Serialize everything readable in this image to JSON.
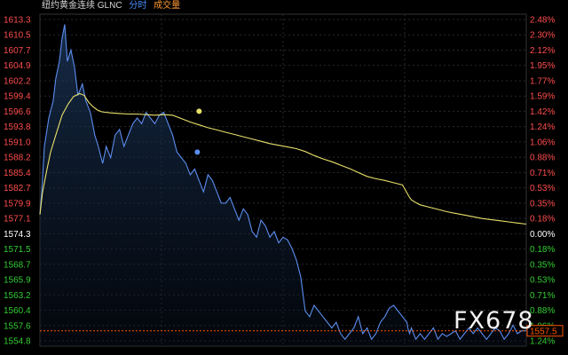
{
  "header": {
    "title": "纽约黄金连续 GLNC",
    "tab_timeshare": "分时",
    "tab_volume": "成交量"
  },
  "watermark": "FX678",
  "colors": {
    "price_line": "#5b8def",
    "avg_line": "#e8e06a",
    "grid": "#2a2a2a",
    "left_axis_text": "#ff4d4d",
    "pct_up": "#ff4d4d",
    "pct_flat": "#ffffff",
    "pct_down": "#33cc33",
    "last_price_tag": "#ff5500"
  },
  "chart_data": {
    "type": "line",
    "title": "",
    "xlabel": "",
    "ylabel": "",
    "ylim": [
      1554.8,
      1613.3
    ],
    "reference_price": 1574.3,
    "price_ticks": [
      "1613.3",
      "1610.5",
      "1607.7",
      "1604.9",
      "1602.2",
      "1599.4",
      "1596.6",
      "1593.8",
      "1591.0",
      "1588.2",
      "1585.4",
      "1582.7",
      "1579.9",
      "1577.1",
      "1574.3",
      "1571.5",
      "1568.7",
      "1565.9",
      "1563.2",
      "1560.4",
      "1557.6",
      "1554.8"
    ],
    "pct_ticks": [
      "2.48%",
      "2.30%",
      "2.12%",
      "1.95%",
      "1.77%",
      "1.59%",
      "1.42%",
      "1.24%",
      "1.06%",
      "0.88%",
      "0.71%",
      "0.53%",
      "0.35%",
      "0.18%",
      "0.00%",
      "0.18%",
      "0.35%",
      "0.53%",
      "0.71%",
      "0.88%",
      "1.06%",
      "1.24%"
    ],
    "last_price_label": "1557.5",
    "last_price": 1557.5,
    "series": [
      {
        "name": "",
        "x": [
          0,
          2,
          5,
          10,
          15,
          18,
          22,
          25,
          28,
          31,
          35,
          39,
          43,
          48,
          52,
          57,
          62,
          66,
          71,
          75,
          80,
          85,
          90,
          95,
          100,
          105,
          110,
          115,
          120,
          125,
          130,
          135,
          140,
          145,
          150,
          155,
          160,
          165,
          170,
          175,
          180,
          185,
          190,
          195,
          200,
          205,
          210,
          215,
          220,
          225,
          230,
          235,
          240,
          245,
          250,
          255,
          260,
          265,
          270,
          275,
          280,
          285,
          290,
          295,
          300,
          305,
          310,
          315,
          320,
          325,
          330,
          335,
          340,
          345,
          350,
          355,
          360,
          365,
          370,
          375,
          380,
          385,
          390,
          395,
          400,
          405,
          410,
          415,
          416,
          418,
          420,
          425,
          430,
          435,
          440,
          445,
          450,
          455,
          460,
          465,
          470,
          475,
          480,
          485,
          490,
          495,
          500,
          505,
          510,
          515,
          520,
          525,
          530,
          535,
          540,
          545,
          550
        ],
        "values": [
          1578.0,
          1582.0,
          1590.0,
          1595.0,
          1598.0,
          1602.0,
          1605.0,
          1609.0,
          1611.5,
          1605.0,
          1607.0,
          1604.0,
          1599.0,
          1601.0,
          1598.0,
          1596.0,
          1592.0,
          1590.0,
          1587.0,
          1590.0,
          1588.0,
          1592.0,
          1593.0,
          1590.0,
          1592.0,
          1594.0,
          1595.0,
          1594.0,
          1596.0,
          1595.0,
          1594.0,
          1595.5,
          1596.0,
          1594.0,
          1592.0,
          1589.0,
          1588.0,
          1587.0,
          1585.0,
          1586.0,
          1584.0,
          1582.0,
          1585.0,
          1584.0,
          1582.0,
          1580.0,
          1580.0,
          1581.0,
          1579.0,
          1577.0,
          1579.0,
          1578.0,
          1575.0,
          1574.0,
          1577.0,
          1576.0,
          1574.0,
          1575.0,
          1573.0,
          1574.0,
          1573.5,
          1572.0,
          1570.0,
          1567.0,
          1561.0,
          1560.0,
          1562.0,
          1561.0,
          1560.0,
          1559.0,
          1558.0,
          1559.0,
          1557.0,
          1556.0,
          1557.0,
          1558.0,
          1560.0,
          1557.0,
          1558.0,
          1556.0,
          1557.0,
          1559.0,
          1560.0,
          1561.5,
          1562.0,
          1561.0,
          1560.0,
          1559.0,
          1558.0,
          1557.0,
          1558.0,
          1556.0,
          1557.0,
          1556.0,
          1557.0,
          1558.0,
          1556.0,
          1557.0,
          1556.5,
          1557.0,
          1557.5,
          1556.0,
          1557.0,
          1558.0,
          1557.0,
          1558.0,
          1557.0,
          1556.0,
          1557.0,
          1558.0,
          1557.5,
          1556.0,
          1557.0,
          1558.5,
          1557.0,
          1557.5,
          1557.5
        ]
      },
      {
        "name": "",
        "x": [
          0,
          3,
          8,
          12,
          18,
          25,
          32,
          38,
          45,
          50,
          55,
          60,
          65,
          70,
          80,
          90,
          100,
          110,
          120,
          130,
          140,
          150,
          160,
          170,
          180,
          190,
          200,
          210,
          220,
          230,
          240,
          250,
          260,
          270,
          280,
          290,
          300,
          310,
          320,
          330,
          340,
          350,
          360,
          370,
          380,
          390,
          400,
          410,
          418,
          420,
          425,
          430,
          440,
          450,
          460,
          470,
          480,
          490,
          500,
          510,
          520,
          530,
          540,
          550
        ],
        "values": [
          1578.0,
          1582.0,
          1586.0,
          1589.0,
          1592.0,
          1595.5,
          1597.5,
          1598.8,
          1599.3,
          1599.0,
          1597.8,
          1597.0,
          1596.4,
          1596.1,
          1595.9,
          1595.8,
          1595.7,
          1595.7,
          1595.6,
          1595.5,
          1595.6,
          1595.5,
          1594.9,
          1594.3,
          1593.8,
          1593.3,
          1592.9,
          1592.5,
          1592.1,
          1591.7,
          1591.3,
          1590.9,
          1590.5,
          1590.2,
          1589.9,
          1589.6,
          1589.1,
          1588.4,
          1587.8,
          1587.3,
          1586.7,
          1586.1,
          1585.4,
          1584.7,
          1584.3,
          1584.0,
          1583.6,
          1583.2,
          1581.0,
          1580.6,
          1580.1,
          1579.7,
          1579.3,
          1578.9,
          1578.5,
          1578.2,
          1577.9,
          1577.6,
          1577.3,
          1577.1,
          1576.9,
          1576.7,
          1576.5,
          1576.3
        ]
      }
    ],
    "marker_points": [
      {
        "x": 180,
        "value": 1596.2
      },
      {
        "x": 178,
        "value": 1589.0
      }
    ],
    "x_range": [
      0,
      550
    ]
  }
}
